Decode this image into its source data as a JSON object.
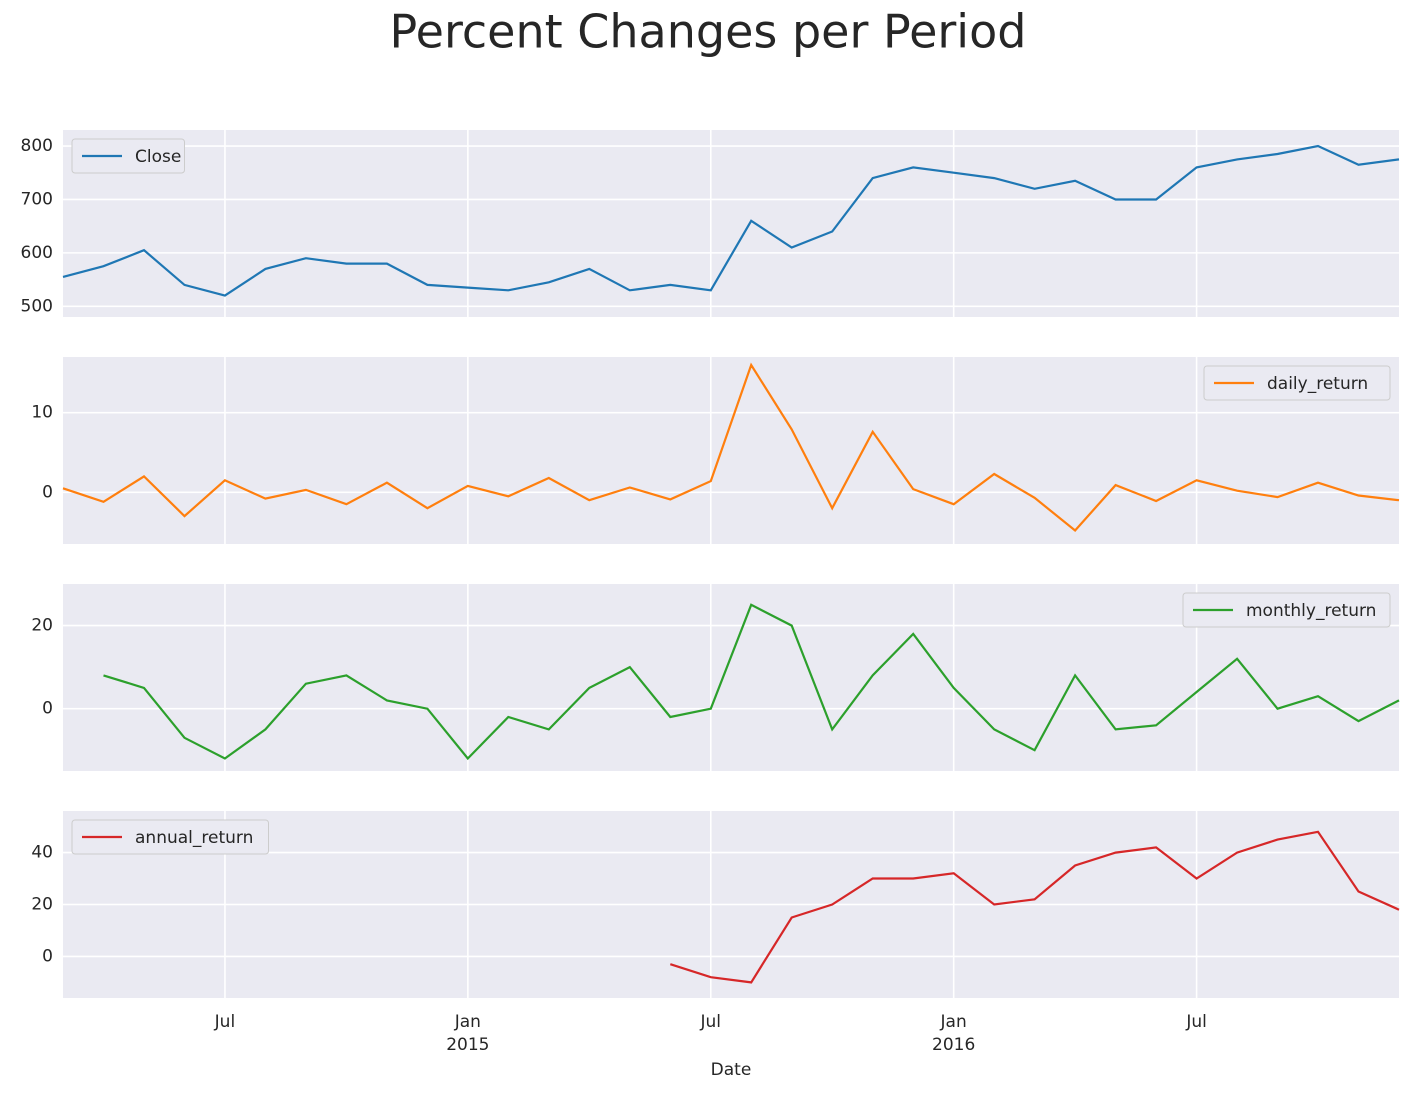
{
  "chart_data": [
    {
      "type": "line",
      "title": "Percent Changes per Period",
      "x": [
        "2014-03",
        "2014-04",
        "2014-05",
        "2014-06",
        "2014-07",
        "2014-08",
        "2014-09",
        "2014-10",
        "2014-11",
        "2014-12",
        "2015-01",
        "2015-02",
        "2015-03",
        "2015-04",
        "2015-05",
        "2015-06",
        "2015-07",
        "2015-08",
        "2015-09",
        "2015-10",
        "2015-11",
        "2015-12",
        "2016-01",
        "2016-02",
        "2016-03",
        "2016-04",
        "2016-05",
        "2016-06",
        "2016-07",
        "2016-08",
        "2016-09",
        "2016-10",
        "2016-11",
        "2016-12"
      ],
      "xlim": [
        "2014-03",
        "2016-12"
      ],
      "series": [
        {
          "name": "Close",
          "color": "#1f77b4",
          "values": [
            555,
            575,
            605,
            540,
            520,
            570,
            590,
            580,
            580,
            540,
            535,
            530,
            545,
            570,
            530,
            540,
            530,
            660,
            610,
            640,
            740,
            760,
            750,
            740,
            720,
            735,
            700,
            700,
            760,
            775,
            785,
            800,
            765,
            775
          ]
        }
      ],
      "ylim": [
        480,
        830
      ],
      "yticks": [
        500,
        600,
        700,
        800
      ],
      "grid": true,
      "legend": "upper left"
    },
    {
      "type": "line",
      "x": [
        "2014-03",
        "2014-04",
        "2014-05",
        "2014-06",
        "2014-07",
        "2014-08",
        "2014-09",
        "2014-10",
        "2014-11",
        "2014-12",
        "2015-01",
        "2015-02",
        "2015-03",
        "2015-04",
        "2015-05",
        "2015-06",
        "2015-07",
        "2015-08",
        "2015-09",
        "2015-10",
        "2015-11",
        "2015-12",
        "2016-01",
        "2016-02",
        "2016-03",
        "2016-04",
        "2016-05",
        "2016-06",
        "2016-07",
        "2016-08",
        "2016-09",
        "2016-10",
        "2016-11",
        "2016-12"
      ],
      "xlim": [
        "2014-03",
        "2016-12"
      ],
      "series": [
        {
          "name": "daily_return",
          "color": "#ff7f0e",
          "values": [
            0.5,
            -1.2,
            2,
            -3,
            1.5,
            -0.8,
            0.3,
            -1.5,
            1.2,
            -2,
            0.8,
            -0.5,
            1.8,
            -1,
            0.6,
            -0.9,
            1.4,
            16,
            7.9,
            -2,
            7.6,
            0.4,
            -1.5,
            2.3,
            -0.7,
            -4.8,
            0.9,
            -1.1,
            1.5,
            0.2,
            -0.6,
            1.2,
            -0.4,
            -1
          ]
        }
      ],
      "ylim": [
        -6.5,
        17
      ],
      "yticks": [
        0,
        10
      ],
      "grid": true,
      "legend": "upper right"
    },
    {
      "type": "line",
      "x": [
        "2014-03",
        "2014-04",
        "2014-05",
        "2014-06",
        "2014-07",
        "2014-08",
        "2014-09",
        "2014-10",
        "2014-11",
        "2014-12",
        "2015-01",
        "2015-02",
        "2015-03",
        "2015-04",
        "2015-05",
        "2015-06",
        "2015-07",
        "2015-08",
        "2015-09",
        "2015-10",
        "2015-11",
        "2015-12",
        "2016-01",
        "2016-02",
        "2016-03",
        "2016-04",
        "2016-05",
        "2016-06",
        "2016-07",
        "2016-08",
        "2016-09",
        "2016-10",
        "2016-11",
        "2016-12"
      ],
      "xlim": [
        "2014-03",
        "2016-12"
      ],
      "series": [
        {
          "name": "monthly_return",
          "color": "#2ca02c",
          "values": [
            null,
            8,
            5,
            -7,
            -12,
            -5,
            6,
            8,
            2,
            0,
            -12,
            -2,
            -5,
            5,
            10,
            -2,
            0,
            25,
            20,
            -5,
            8,
            18,
            5,
            -5,
            -10,
            8,
            -5,
            -4,
            4,
            12,
            0,
            3,
            -3,
            2
          ]
        }
      ],
      "ylim": [
        -15,
        30
      ],
      "yticks": [
        0,
        20
      ],
      "grid": true,
      "legend": "upper right"
    },
    {
      "type": "line",
      "x_label": "Date",
      "x": [
        "2014-03",
        "2014-04",
        "2014-05",
        "2014-06",
        "2014-07",
        "2014-08",
        "2014-09",
        "2014-10",
        "2014-11",
        "2014-12",
        "2015-01",
        "2015-02",
        "2015-03",
        "2015-04",
        "2015-05",
        "2015-06",
        "2015-07",
        "2015-08",
        "2015-09",
        "2015-10",
        "2015-11",
        "2015-12",
        "2016-01",
        "2016-02",
        "2016-03",
        "2016-04",
        "2016-05",
        "2016-06",
        "2016-07",
        "2016-08",
        "2016-09",
        "2016-10",
        "2016-11",
        "2016-12"
      ],
      "xlim": [
        "2014-03",
        "2016-12"
      ],
      "xticks": [
        {
          "value": "2014-07",
          "label": "Jul"
        },
        {
          "value": "2015-01",
          "label": "Jan 2015"
        },
        {
          "value": "2015-07",
          "label": "Jul"
        },
        {
          "value": "2016-01",
          "label": "Jan 2016"
        },
        {
          "value": "2016-07",
          "label": "Jul"
        }
      ],
      "series": [
        {
          "name": "annual_return",
          "color": "#d62728",
          "values": [
            null,
            null,
            null,
            null,
            null,
            null,
            null,
            null,
            null,
            null,
            null,
            null,
            null,
            null,
            null,
            -3,
            -8,
            -10,
            15,
            20,
            30,
            30,
            32,
            20,
            22,
            35,
            40,
            42,
            30,
            40,
            45,
            48,
            25,
            18
          ]
        }
      ],
      "ylim": [
        -16,
        56
      ],
      "yticks": [
        0,
        20,
        40
      ],
      "grid": true,
      "legend": "upper left"
    }
  ]
}
